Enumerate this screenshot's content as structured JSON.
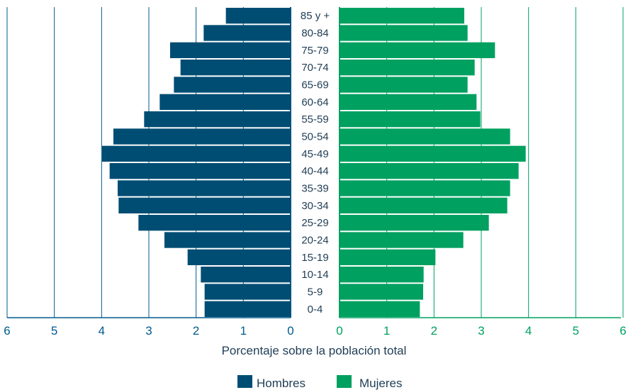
{
  "chart_data": {
    "type": "bar",
    "orientation": "horizontal",
    "categories": [
      "0-4",
      "5-9",
      "10-14",
      "15-19",
      "20-24",
      "25-29",
      "30-34",
      "35-39",
      "40-44",
      "45-49",
      "50-54",
      "55-59",
      "60-64",
      "65-69",
      "70-74",
      "75-79",
      "80-84",
      "85 y +"
    ],
    "series": [
      {
        "name": "Hombres",
        "side": "left",
        "color": "#004d73",
        "values": [
          1.82,
          1.82,
          1.9,
          2.18,
          2.67,
          3.22,
          3.64,
          3.66,
          3.83,
          3.99,
          3.75,
          3.1,
          2.77,
          2.47,
          2.33,
          2.55,
          1.84,
          1.37
        ]
      },
      {
        "name": "Mujeres",
        "side": "right",
        "color": "#00a060",
        "values": [
          1.7,
          1.77,
          1.78,
          2.03,
          2.62,
          3.16,
          3.55,
          3.61,
          3.79,
          3.94,
          3.61,
          2.98,
          2.9,
          2.71,
          2.86,
          3.29,
          2.71,
          2.64
        ]
      }
    ],
    "xlim": [
      0,
      6
    ],
    "left_ticks": [
      "6",
      "5",
      "4",
      "3",
      "2",
      "1",
      "0"
    ],
    "right_ticks": [
      "0",
      "1",
      "2",
      "3",
      "4",
      "5",
      "6"
    ],
    "xlabel": "Porcentaje sobre la población total",
    "grid": "vertical",
    "legend_position": "bottom-center"
  },
  "legend": [
    {
      "label": "Hombres",
      "color": "#004d73"
    },
    {
      "label": "Mujeres",
      "color": "#00a060"
    }
  ],
  "colors": {
    "grid_left": "#005a8c",
    "grid_right": "#00a060",
    "label_text": "#1f3d55"
  }
}
